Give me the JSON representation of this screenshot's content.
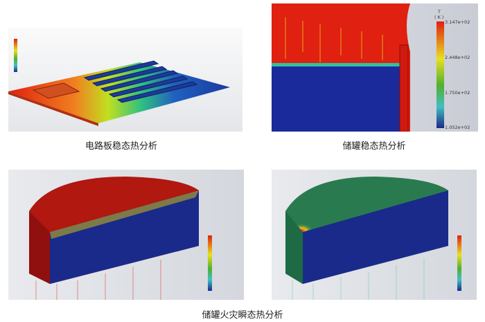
{
  "captions": {
    "pcb": "电路板稳态热分析",
    "tank_steady": "储罐稳态热分析",
    "tank_fire": "储罐火灾瞬态热分析"
  },
  "tank_steady_legend": {
    "title": "T",
    "unit": "( K )",
    "ticks": [
      "3.147e+02",
      "2.448e+02",
      "1.750e+02",
      "1.052e+02"
    ]
  },
  "colors": {
    "hot": "#e02010",
    "warm": "#e8e020",
    "mid": "#50b030",
    "cool": "#40c0c0",
    "cold": "#1a2a8a"
  }
}
